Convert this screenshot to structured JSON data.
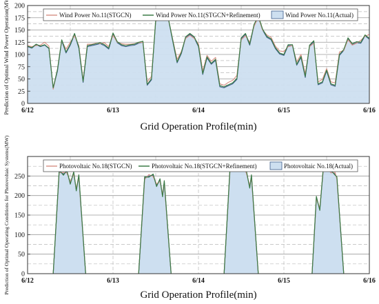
{
  "chart_data": [
    {
      "type": "area",
      "xlabel": "Grid Operation Profile(min)",
      "ylabel": "Prediction of Optimal Wind Power Operation(MW)",
      "x_ticks": [
        "6/12",
        "6/13",
        "6/14",
        "6/15",
        "6/16"
      ],
      "y_ticks": [
        "0",
        "25",
        "50",
        "75",
        "100",
        "125",
        "150",
        "175",
        "200"
      ],
      "ylim": [
        0,
        200
      ],
      "grid": true,
      "legend": "top",
      "x_days": [
        0,
        0.05,
        0.1,
        0.15,
        0.2,
        0.25,
        0.3,
        0.35,
        0.4,
        0.45,
        0.5,
        0.55,
        0.6,
        0.65,
        0.7,
        0.75,
        0.8,
        0.85,
        0.9,
        0.95,
        1.0,
        1.05,
        1.1,
        1.15,
        1.2,
        1.25,
        1.3,
        1.35,
        1.4,
        1.45,
        1.5,
        1.55,
        1.6,
        1.65,
        1.7,
        1.75,
        1.8,
        1.85,
        1.9,
        1.95,
        2.0,
        2.05,
        2.1,
        2.15,
        2.2,
        2.25,
        2.3,
        2.35,
        2.4,
        2.45,
        2.5,
        2.55,
        2.6,
        2.65,
        2.7,
        2.75,
        2.8,
        2.85,
        2.9,
        2.95,
        3.0,
        3.05,
        3.1,
        3.15,
        3.2,
        3.25,
        3.3,
        3.35,
        3.4,
        3.45,
        3.5,
        3.55,
        3.6,
        3.65,
        3.7,
        3.75,
        3.8,
        3.85,
        3.9,
        3.95,
        4.0
      ],
      "series": [
        {
          "name": "Wind Power No.11(STGCN)",
          "color": "#d9958a",
          "values": [
            118,
            116,
            118,
            119,
            125,
            117,
            29,
            70,
            128,
            111,
            125,
            138,
            118,
            47,
            121,
            121,
            123,
            122,
            124,
            116,
            139,
            125,
            122,
            121,
            121,
            122,
            124,
            125,
            44,
            55,
            168,
            172,
            180,
            170,
            130,
            90,
            106,
            133,
            139,
            133,
            122,
            66,
            98,
            86,
            94,
            40,
            37,
            43,
            47,
            57,
            130,
            138,
            125,
            157,
            176,
            150,
            140,
            135,
            117,
            107,
            106,
            116,
            118,
            85,
            100,
            60,
            116,
            123,
            44,
            49,
            71,
            44,
            42,
            105,
            108,
            130,
            119,
            123,
            129,
            137,
            141
          ]
        },
        {
          "name": "Wind Power No.11(STGCN+Refinement)",
          "color": "#3a7a45",
          "values": [
            117,
            114,
            121,
            117,
            120,
            113,
            32,
            69,
            130,
            105,
            121,
            143,
            115,
            45,
            118,
            120,
            122,
            124,
            120,
            113,
            144,
            126,
            120,
            118,
            120,
            121,
            125,
            127,
            39,
            50,
            171,
            175,
            181,
            172,
            128,
            85,
            104,
            136,
            143,
            136,
            118,
            61,
            95,
            82,
            90,
            36,
            34,
            38,
            42,
            51,
            134,
            143,
            121,
            161,
            179,
            152,
            137,
            132,
            114,
            103,
            100,
            120,
            120,
            80,
            96,
            55,
            119,
            128,
            40,
            44,
            68,
            40,
            37,
            100,
            110,
            134,
            122,
            126,
            125,
            140,
            133
          ]
        },
        {
          "name": "Wind Power No.11(Actual)",
          "color": "#3d5c8a",
          "fill": "#cddff0",
          "values": [
            116,
            113,
            120,
            116,
            119,
            112,
            30,
            66,
            128,
            103,
            119,
            141,
            113,
            43,
            116,
            118,
            120,
            122,
            118,
            111,
            141,
            124,
            118,
            116,
            118,
            119,
            123,
            125,
            37,
            48,
            169,
            173,
            179,
            170,
            126,
            83,
            102,
            134,
            141,
            134,
            116,
            59,
            93,
            80,
            88,
            34,
            32,
            36,
            40,
            49,
            132,
            141,
            119,
            158,
            177,
            150,
            135,
            130,
            112,
            101,
            98,
            118,
            118,
            78,
            94,
            53,
            117,
            126,
            38,
            42,
            66,
            38,
            35,
            98,
            108,
            132,
            120,
            124,
            123,
            138,
            131
          ]
        }
      ]
    },
    {
      "type": "area",
      "xlabel": "Grid Operation Profile(min)",
      "ylabel": "Prediction of Optimal Operating Conditions for Photovoltaic Systems(MW)",
      "x_ticks": [
        "6/12",
        "6/13",
        "6/14",
        "6/15",
        "6/16"
      ],
      "y_ticks": [
        "0",
        "50",
        "100",
        "150",
        "200",
        "250"
      ],
      "ylim": [
        0,
        300
      ],
      "grid": true,
      "legend": "top",
      "days": [
        {
          "start": 0.3,
          "ramp_end": 0.37,
          "plateau_end": 0.6,
          "end": 0.68,
          "peaks": [
            [
              0.37,
              262
            ],
            [
              0.42,
              255
            ],
            [
              0.46,
              262
            ],
            [
              0.5,
              232
            ],
            [
              0.54,
              258
            ],
            [
              0.57,
              215
            ],
            [
              0.6,
              250
            ]
          ]
        },
        {
          "start": 1.3,
          "ramp_end": 1.37,
          "plateau_end": 1.6,
          "end": 1.68,
          "peaks": [
            [
              1.37,
              245
            ],
            [
              1.42,
              250
            ],
            [
              1.47,
              252
            ],
            [
              1.51,
              226
            ],
            [
              1.55,
              240
            ],
            [
              1.58,
              200
            ],
            [
              1.6,
              235
            ]
          ]
        },
        {
          "start": 2.3,
          "ramp_end": 2.37,
          "plateau_end": 2.6,
          "end": 2.7,
          "peaks": [
            [
              2.37,
              272
            ],
            [
              2.42,
              275
            ],
            [
              2.47,
              268
            ],
            [
              2.52,
              270
            ],
            [
              2.56,
              262
            ],
            [
              2.6,
              222
            ],
            [
              2.62,
              250
            ]
          ]
        },
        {
          "start": 3.33,
          "ramp_end": 3.42,
          "plateau_end": 3.62,
          "end": 3.7,
          "peaks": [
            [
              3.38,
              195
            ],
            [
              3.42,
              165
            ],
            [
              3.46,
              265
            ],
            [
              3.5,
              270
            ],
            [
              3.55,
              262
            ],
            [
              3.6,
              255
            ],
            [
              3.62,
              245
            ]
          ]
        }
      ],
      "series": [
        {
          "name": "Photovoltaic No.18(STGCN)",
          "color": "#d9958a"
        },
        {
          "name": "Photovoltaic No.18(STGCN+Refinement)",
          "color": "#3a7a45"
        },
        {
          "name": "Photovoltaic No.18(Actual)",
          "color": "#3d5c8a",
          "fill": "#cddff0"
        }
      ]
    }
  ]
}
